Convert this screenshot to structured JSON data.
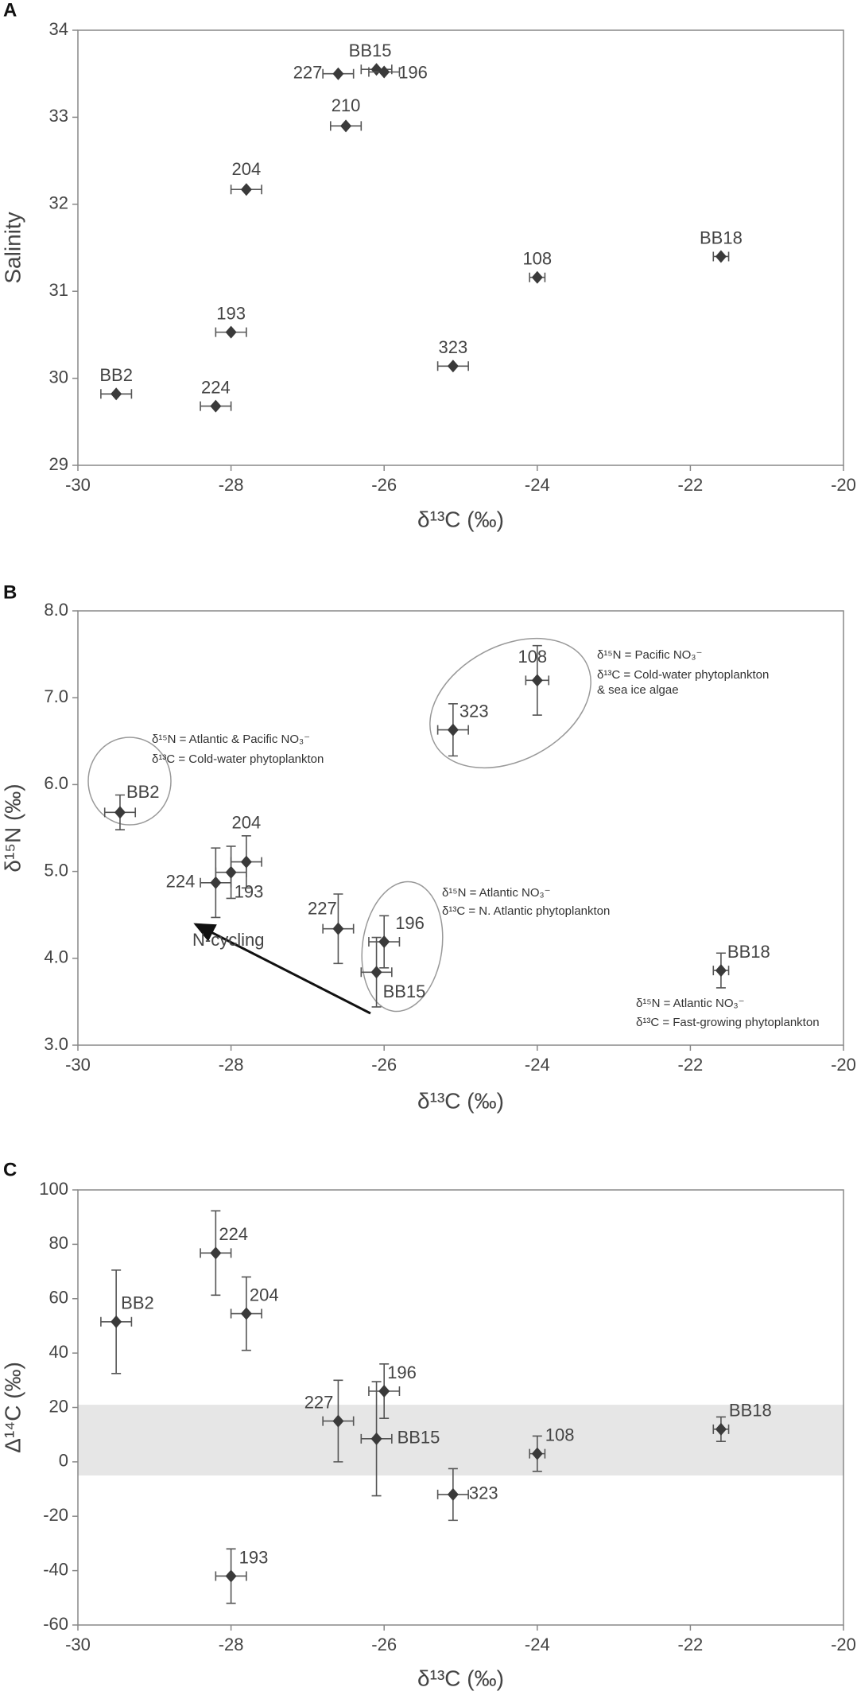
{
  "chart_data": [
    {
      "type": "scatter",
      "panel": "A",
      "x_label": "δ¹³C (‰)",
      "y_label": "Salinity",
      "xlim": [
        -30,
        -20
      ],
      "xticks": [
        -30,
        -28,
        -26,
        -24,
        -22,
        -20
      ],
      "ylim": [
        29,
        34
      ],
      "yticks": [
        29,
        30,
        31,
        32,
        33,
        34
      ],
      "series": [
        {
          "color": "#3a3a3a",
          "labels": [
            "BB2",
            "224",
            "193",
            "204",
            "227",
            "BB15",
            "196",
            "210",
            "323",
            "108",
            "BB18"
          ],
          "x": [
            -29.5,
            -28.2,
            -28.0,
            -27.8,
            -26.6,
            -26.1,
            -26.0,
            -26.5,
            -25.1,
            -24.0,
            -21.6
          ],
          "values": [
            29.82,
            29.68,
            30.53,
            32.17,
            33.5,
            33.55,
            33.52,
            32.9,
            30.14,
            31.16,
            31.4
          ],
          "xerr": [
            0.2,
            0.2,
            0.2,
            0.2,
            0.2,
            0.2,
            0.2,
            0.2,
            0.2,
            0.1,
            0.1
          ]
        }
      ]
    },
    {
      "type": "scatter",
      "panel": "B",
      "x_label": "δ¹³C (‰)",
      "y_label": "δ¹⁵N (‰)",
      "xlim": [
        -30,
        -20
      ],
      "xticks": [
        -30,
        -28,
        -26,
        -24,
        -22,
        -20
      ],
      "ylim": [
        3,
        8
      ],
      "yticks": [
        {
          "value": 3,
          "label": "3.0"
        },
        {
          "value": 4,
          "label": "4.0"
        },
        {
          "value": 5,
          "label": "5.0"
        },
        {
          "value": 6,
          "label": "6.0"
        },
        {
          "value": 7,
          "label": "7.0"
        },
        {
          "value": 8,
          "label": "8.0"
        }
      ],
      "series": [
        {
          "color": "#3a3a3a",
          "labels": [
            "BB2",
            "224",
            "193",
            "204",
            "227",
            "196",
            "BB15",
            "323",
            "108",
            "BB18"
          ],
          "x": [
            -29.45,
            -28.2,
            -28.0,
            -27.8,
            -26.6,
            -26.0,
            -26.1,
            -25.1,
            -24.0,
            -21.6
          ],
          "values": [
            5.68,
            4.87,
            4.99,
            5.11,
            4.34,
            4.19,
            3.84,
            6.63,
            7.2,
            3.86
          ],
          "xerr": [
            0.2,
            0.2,
            0.2,
            0.2,
            0.2,
            0.2,
            0.2,
            0.2,
            0.15,
            0.1
          ],
          "yerr": [
            0.2,
            0.4,
            0.3,
            0.3,
            0.4,
            0.3,
            0.4,
            0.3,
            0.4,
            0.2
          ]
        }
      ],
      "annotations": [
        "δ¹⁵N = Atlantic & Pacific NO₃⁻",
        "δ¹³C = Cold-water phytoplankton",
        "δ¹⁵N = Pacific NO₃⁻",
        "δ¹³C = Cold-water phytoplankton",
        "& sea ice algae",
        "δ¹⁵N = Atlantic NO₃⁻",
        "δ¹³C = N. Atlantic phytoplankton",
        "δ¹⁵N = Atlantic NO₃⁻",
        "δ¹³C = Fast-growing phytoplankton"
      ],
      "arrow_label": "N-cycling"
    },
    {
      "type": "scatter",
      "panel": "C",
      "x_label": "δ¹³C (‰)",
      "y_label": "Δ¹⁴C (‰)",
      "xlim": [
        -30,
        -20
      ],
      "xticks": [
        -30,
        -28,
        -26,
        -24,
        -22,
        -20
      ],
      "ylim": [
        -60,
        100
      ],
      "yticks": [
        -60,
        -40,
        -20,
        0,
        20,
        40,
        60,
        80,
        100
      ],
      "band": [
        -5,
        21
      ],
      "series": [
        {
          "color": "#3a3a3a",
          "labels": [
            "BB2",
            "224",
            "204",
            "227",
            "196",
            "BB15",
            "108",
            "BB18",
            "323",
            "193"
          ],
          "x": [
            -29.5,
            -28.2,
            -27.8,
            -26.6,
            -26.0,
            -26.1,
            -24.0,
            -21.6,
            -25.1,
            -28.0
          ],
          "values": [
            51.5,
            76.8,
            54.5,
            15,
            26,
            8.5,
            3,
            12,
            -12,
            -42
          ],
          "xerr": [
            0.2,
            0.2,
            0.2,
            0.2,
            0.2,
            0.2,
            0.1,
            0.1,
            0.2,
            0.2
          ],
          "yerr": [
            19,
            15.5,
            13.5,
            15,
            10,
            21,
            6.5,
            4.5,
            9.5,
            10
          ]
        }
      ]
    }
  ]
}
